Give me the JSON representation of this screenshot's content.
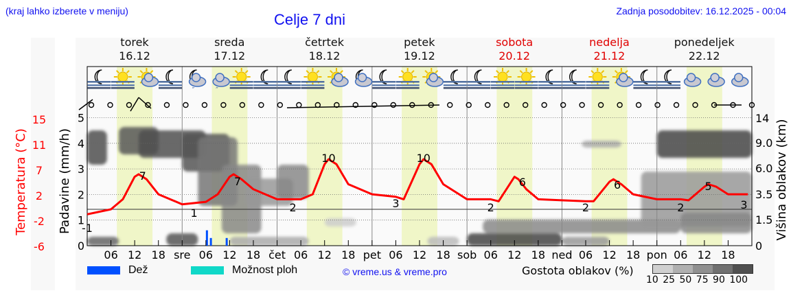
{
  "header": {
    "hint": "(kraj lahko izberete v meniju)",
    "title": "Celje 7 dni",
    "last_update": "Zadnja posodobitev: 16.12.2025 - 00:04"
  },
  "days": [
    {
      "name": "torek",
      "date": "16.12",
      "weekend": false,
      "short": "tor"
    },
    {
      "name": "sreda",
      "date": "17.12",
      "weekend": false,
      "short": "sre"
    },
    {
      "name": "četrtek",
      "date": "18.12",
      "weekend": false,
      "short": "čet"
    },
    {
      "name": "petek",
      "date": "19.12",
      "weekend": false,
      "short": "pet"
    },
    {
      "name": "sobota",
      "date": "20.12",
      "weekend": true,
      "short": "sob"
    },
    {
      "name": "nedelja",
      "date": "21.12",
      "weekend": true,
      "short": "ned"
    },
    {
      "name": "ponedeljek",
      "date": "22.12",
      "weekend": false,
      "short": "pon"
    }
  ],
  "axes": {
    "temp_label": "Temperatura (°C)",
    "precip_label": "Padavine (mm/h)",
    "cloud_label": "Višina oblakov (km)",
    "temp_ticks": [
      "15",
      "11",
      "7",
      "2",
      "-2",
      "-6"
    ],
    "precip_ticks": [
      "5",
      "4",
      "3",
      "2",
      "1",
      "0"
    ],
    "cloud_ticks": [
      "14",
      "9.0",
      "6.0",
      "3.5",
      "1.5",
      "0"
    ],
    "x_ticks": [
      "06",
      "12",
      "18",
      "sre",
      "06",
      "12",
      "18",
      "čet",
      "06",
      "12",
      "18",
      "pet",
      "06",
      "12",
      "18",
      "sob",
      "06",
      "12",
      "18",
      "ned",
      "06",
      "12",
      "18",
      "pon",
      "06",
      "12",
      "18"
    ]
  },
  "legend": {
    "rain": "Dež",
    "rain_color": "#0050ff",
    "showers": "Možnost ploh",
    "showers_color": "#10d8c8",
    "copyright": "© vreme.us & vreme.pro",
    "density_label": "Gostota oblakov (%)",
    "density_ticks": "10 25 50 75 90 100",
    "density_colors": [
      "#d0d0d0",
      "#b0b0b0",
      "#909090",
      "#707070",
      "#505050"
    ]
  },
  "icons": [
    "moon-fog",
    "sun-fog",
    "sun-cloud",
    "moon-fog",
    "moon-cloud-rain",
    "cloud-rain",
    "sun-fog",
    "moon-fog",
    "moon-fog",
    "sun-fog",
    "sun-cloud",
    "moon-cloud",
    "moon-fog",
    "sun-fog",
    "sun-cloud",
    "moon-fog",
    "moon-fog",
    "sun-fog",
    "sun-fog",
    "moon-fog",
    "moon-fog",
    "sun-fog",
    "sun-cloud",
    "moon-fog",
    "moon-fog",
    "cloud",
    "cloud",
    "cloud"
  ],
  "chart_data": {
    "type": "line",
    "title": "Celje 7 dni",
    "xlabel": "",
    "ylabel": "Temperatura (°C)",
    "temperature_series": {
      "name": "Temperatura",
      "color": "#ff0000",
      "x_hours": [
        0,
        6,
        9,
        12,
        13,
        15,
        18,
        24,
        30,
        33,
        36,
        37,
        39,
        42,
        48,
        54,
        57,
        60,
        61,
        63,
        66,
        72,
        78,
        80,
        84,
        85,
        87,
        90,
        96,
        102,
        104,
        108,
        109,
        111,
        114,
        120,
        126,
        128,
        132,
        133,
        135,
        138,
        144,
        150,
        152,
        156,
        157,
        159,
        162,
        167
      ],
      "values": [
        -1,
        0,
        2,
        6.5,
        7,
        6,
        3,
        1,
        1.5,
        3,
        6.5,
        7,
        6,
        4,
        2,
        2,
        3,
        9,
        10,
        9,
        5,
        3,
        2.5,
        2,
        9,
        10,
        9,
        5,
        2,
        2,
        1.6,
        6.5,
        6,
        4,
        2,
        1.8,
        1.6,
        1.6,
        5.5,
        6,
        5,
        3,
        2,
        2,
        1.8,
        4.5,
        5,
        4.5,
        3,
        3
      ]
    },
    "temperature_labels": [
      {
        "x_hour": 0,
        "value": "-1"
      },
      {
        "x_hour": 14,
        "value": "7"
      },
      {
        "x_hour": 27,
        "value": "1"
      },
      {
        "x_hour": 38,
        "value": "7"
      },
      {
        "x_hour": 52,
        "value": "2"
      },
      {
        "x_hour": 61,
        "value": "10"
      },
      {
        "x_hour": 78,
        "value": "3"
      },
      {
        "x_hour": 85,
        "value": "10"
      },
      {
        "x_hour": 102,
        "value": "2"
      },
      {
        "x_hour": 110,
        "value": "6"
      },
      {
        "x_hour": 126,
        "value": "2"
      },
      {
        "x_hour": 134,
        "value": "6"
      },
      {
        "x_hour": 150,
        "value": "2"
      },
      {
        "x_hour": 157,
        "value": "5"
      },
      {
        "x_hour": 166,
        "value": "3"
      }
    ],
    "precipitation": [
      {
        "x_hour": 30,
        "value": 0.5
      },
      {
        "x_hour": 31,
        "value": 0.25
      },
      {
        "x_hour": 35,
        "value": 0.25
      }
    ],
    "y_precip_range": [
      0,
      5
    ],
    "y_temp_ticks": [
      15,
      11,
      7,
      2,
      -2,
      -6
    ],
    "y_cloud_ticks_km": [
      14,
      9.0,
      6.0,
      3.5,
      1.5,
      0
    ],
    "grid": true,
    "legend_position": "bottom"
  }
}
